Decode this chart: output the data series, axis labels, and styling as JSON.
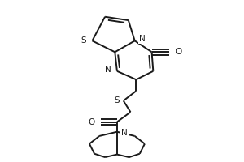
{
  "bg_color": "#ffffff",
  "line_color": "#1a1a1a",
  "lw": 1.4,
  "fig_width": 3.0,
  "fig_height": 2.0,
  "dpi": 100,
  "fs": 7.5,
  "xlim": [
    0,
    300
  ],
  "ylim": [
    0,
    200
  ]
}
